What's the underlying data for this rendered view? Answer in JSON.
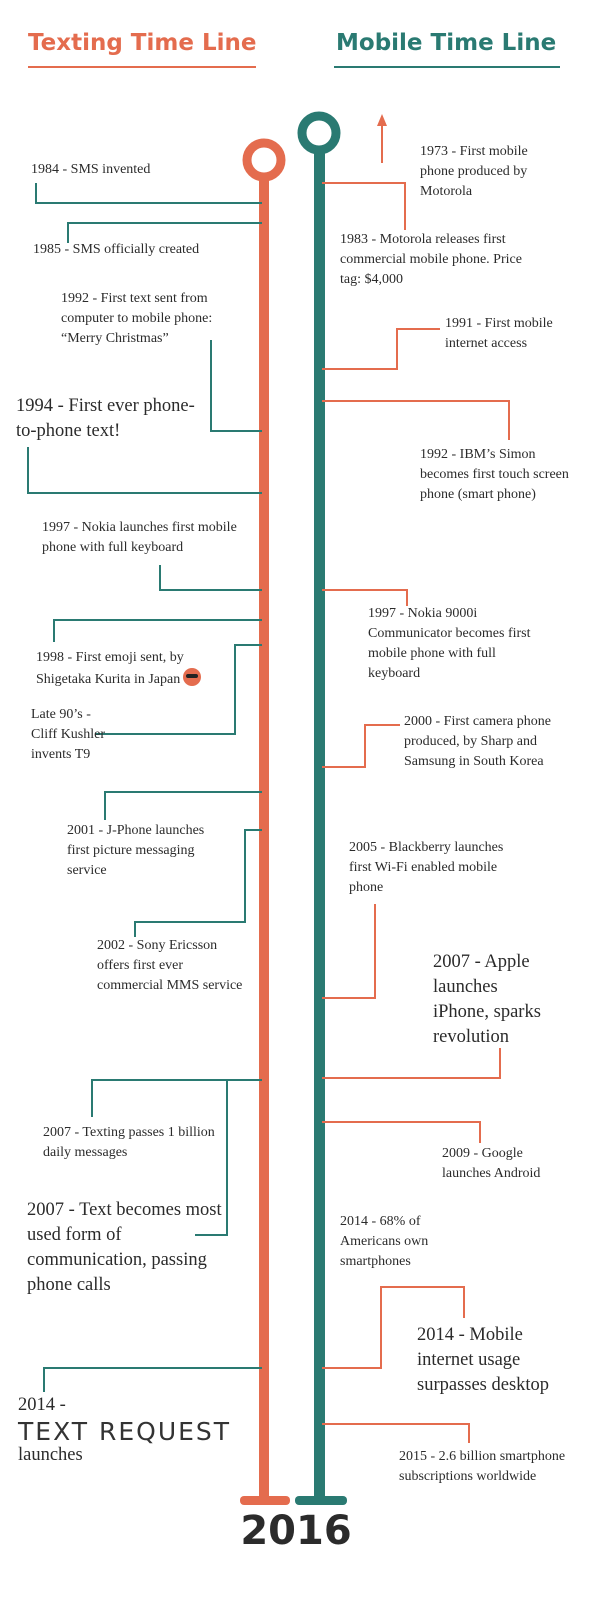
{
  "headers": {
    "texting": "Texting Time Line",
    "mobile": "Mobile Time Line"
  },
  "colors": {
    "texting": "#e46c4e",
    "mobile": "#2a7a72",
    "text": "#2b2b2b"
  },
  "texting_events": [
    "1984 - SMS invented",
    "1985 - SMS officially created",
    "1992 - First text sent from computer to mobile phone: “Merry Christmas”",
    "1994 - First ever phone-to-phone text!",
    "1997 - Nokia launches first mobile phone with full keyboard",
    "1998 - First emoji sent, by Shigetaka Kurita in Japan",
    "Late 90’s - Cliff Kushler invents T9",
    "2001 - J-Phone launches first picture messaging service",
    "2002 - Sony Ericsson offers first ever commercial MMS service",
    "2007 - Texting passes 1 billion daily messages",
    "2007 - Text becomes most used form of communication, passing phone calls",
    "2014 -"
  ],
  "logo": "TEXT REQUEST",
  "logo_suffix": "launches",
  "mobile_events": [
    "1973 - First mobile phone produced by Motorola",
    "1983 - Motorola releases first commercial mobile phone. Price tag: $4,000",
    "1991 - First mobile internet access",
    "1992 - IBM’s Simon becomes first touch screen phone (smart phone)",
    "1997 - Nokia 9000i Communicator becomes first mobile phone with full keyboard",
    "2000 - First camera phone produced, by Sharp and Samsung in South Korea",
    "2005 - Blackberry launches first Wi-Fi enabled mobile phone",
    "2007 - Apple launches iPhone, sparks revolution",
    "2009 - Google launches Android",
    "2014 - 68% of Americans own smartphones",
    "2014 - Mobile internet usage surpasses desktop",
    "2015 - 2.6 billion smartphone subscriptions worldwide"
  ],
  "footer_year": "2016"
}
